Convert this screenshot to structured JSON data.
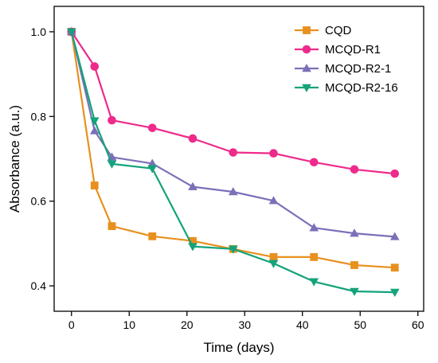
{
  "chart_data": {
    "type": "line",
    "xlabel": "Time (days)",
    "ylabel": "Absorbance (a.u.)",
    "xlim": [
      -3,
      61
    ],
    "ylim": [
      0.34,
      1.06
    ],
    "xticks": [
      0,
      10,
      20,
      30,
      40,
      50,
      60
    ],
    "yticks": [
      0.4,
      0.6,
      0.8,
      1.0
    ],
    "ytick_labels": [
      "0.4",
      "0.6",
      "0.8",
      "1.0"
    ],
    "grid": false,
    "legend_position": "top-right",
    "series": [
      {
        "name": "CQD",
        "color": "#E8901E",
        "marker": "square",
        "x": [
          0,
          4,
          7,
          14,
          21,
          28,
          35,
          42,
          49,
          56
        ],
        "y": [
          1.0,
          0.637,
          0.541,
          0.517,
          0.506,
          0.487,
          0.468,
          0.468,
          0.449,
          0.443
        ]
      },
      {
        "name": "MCQD-R1",
        "color": "#EE2A8A",
        "marker": "circle",
        "x": [
          0,
          4,
          7,
          14,
          21,
          28,
          35,
          42,
          49,
          56
        ],
        "y": [
          1.0,
          0.918,
          0.791,
          0.773,
          0.748,
          0.715,
          0.713,
          0.692,
          0.675,
          0.665
        ]
      },
      {
        "name": "MCQD-R2-1",
        "color": "#7B70B8",
        "marker": "triangle-up",
        "x": [
          0,
          4,
          7,
          14,
          21,
          28,
          35,
          42,
          49,
          56
        ],
        "y": [
          1.0,
          0.766,
          0.704,
          0.689,
          0.634,
          0.622,
          0.601,
          0.537,
          0.524,
          0.516
        ]
      },
      {
        "name": "MCQD-R2-16",
        "color": "#14A37A",
        "marker": "triangle-down",
        "x": [
          0,
          4,
          7,
          14,
          21,
          28,
          35,
          42,
          49,
          56
        ],
        "y": [
          1.0,
          0.79,
          0.688,
          0.677,
          0.493,
          0.487,
          0.453,
          0.41,
          0.387,
          0.385
        ]
      }
    ]
  }
}
